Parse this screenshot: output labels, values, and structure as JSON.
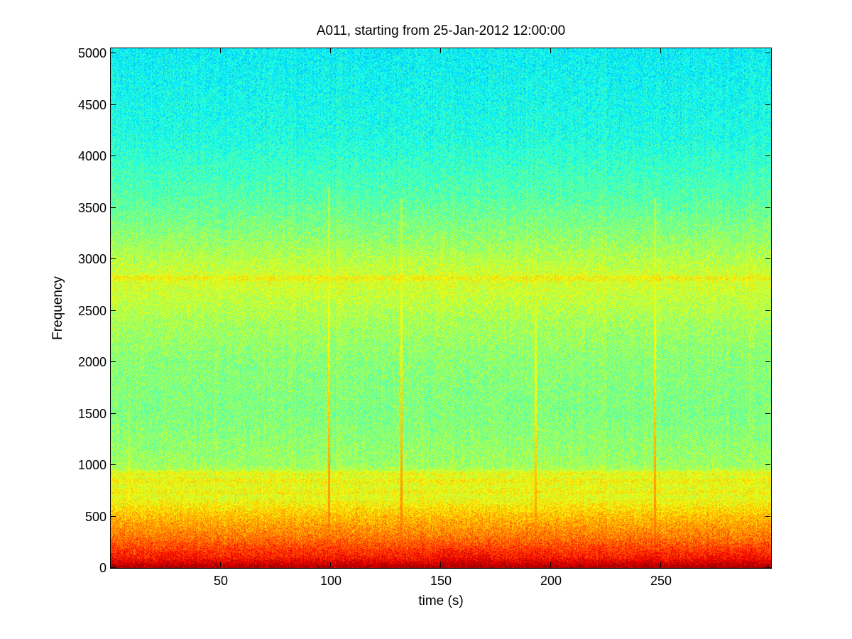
{
  "chart_data": {
    "type": "heatmap",
    "subtype": "spectrogram",
    "title": "A011, starting from 25-Jan-2012 12:00:00",
    "xlabel": "time (s)",
    "ylabel": "Frequency",
    "xlim": [
      0,
      300
    ],
    "ylim": [
      0,
      5050
    ],
    "xticks": [
      50,
      100,
      150,
      200,
      250
    ],
    "yticks": [
      0,
      500,
      1000,
      1500,
      2000,
      2500,
      3000,
      3500,
      4000,
      4500,
      5000
    ],
    "colormap": "jet",
    "grid": false,
    "energy_profile": [
      {
        "frequency": 0,
        "level": 0.97
      },
      {
        "frequency": 100,
        "level": 0.86
      },
      {
        "frequency": 300,
        "level": 0.76
      },
      {
        "frequency": 500,
        "level": 0.69
      },
      {
        "frequency": 700,
        "level": 0.6
      },
      {
        "frequency": 850,
        "level": 0.61
      },
      {
        "frequency": 1000,
        "level": 0.53
      },
      {
        "frequency": 1500,
        "level": 0.5
      },
      {
        "frequency": 2000,
        "level": 0.51
      },
      {
        "frequency": 2400,
        "level": 0.54
      },
      {
        "frequency": 2800,
        "level": 0.59
      },
      {
        "frequency": 3200,
        "level": 0.52
      },
      {
        "frequency": 3600,
        "level": 0.46
      },
      {
        "frequency": 4200,
        "level": 0.4
      },
      {
        "frequency": 5050,
        "level": 0.37
      }
    ],
    "horizontal_bands": [
      {
        "frequency": 740,
        "level": 0.63
      },
      {
        "frequency": 850,
        "level": 0.63
      },
      {
        "frequency": 920,
        "level": 0.62
      },
      {
        "frequency": 2820,
        "level": 0.63
      }
    ],
    "transient_events": [
      {
        "time": 8,
        "max_frequency": 1700,
        "level": 0.72
      },
      {
        "time": 20,
        "max_frequency": 500,
        "level": 0.85
      },
      {
        "time": 25,
        "max_frequency": 400,
        "level": 0.82
      },
      {
        "time": 37,
        "max_frequency": 400,
        "level": 0.82
      },
      {
        "time": 69,
        "max_frequency": 500,
        "level": 0.85
      },
      {
        "time": 93,
        "max_frequency": 400,
        "level": 0.85
      },
      {
        "time": 99,
        "max_frequency": 3700,
        "level": 0.8
      },
      {
        "time": 102,
        "max_frequency": 480,
        "level": 0.85
      },
      {
        "time": 132,
        "max_frequency": 3600,
        "level": 0.8
      },
      {
        "time": 158,
        "max_frequency": 650,
        "level": 0.9
      },
      {
        "time": 162,
        "max_frequency": 400,
        "level": 0.88
      },
      {
        "time": 168,
        "max_frequency": 350,
        "level": 0.88
      },
      {
        "time": 193,
        "max_frequency": 3200,
        "level": 0.78
      },
      {
        "time": 247,
        "max_frequency": 3600,
        "level": 0.8
      },
      {
        "time": 277,
        "max_frequency": 400,
        "level": 0.85
      },
      {
        "time": 290,
        "max_frequency": 500,
        "level": 0.85
      }
    ],
    "low_frequency_clusters": [
      {
        "time_start": 148,
        "time_end": 172,
        "max_frequency": 150,
        "level": 0.95
      },
      {
        "time_start": 238,
        "time_end": 250,
        "max_frequency": 120,
        "level": 0.92
      },
      {
        "time_start": 268,
        "time_end": 294,
        "max_frequency": 120,
        "level": 0.92
      },
      {
        "time_start": 20,
        "time_end": 40,
        "max_frequency": 100,
        "level": 0.9
      }
    ]
  }
}
